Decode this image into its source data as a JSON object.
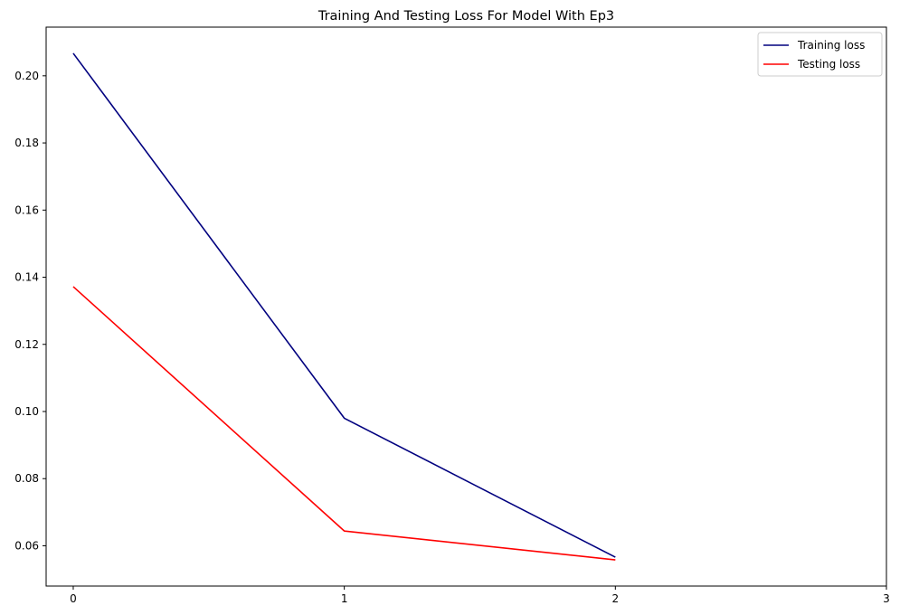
{
  "chart_data": {
    "type": "line",
    "title": "Training And Testing Loss For Model With Ep3",
    "xlabel": "",
    "ylabel": "",
    "x": [
      0,
      1,
      2
    ],
    "xlim": [
      -0.1,
      3
    ],
    "ylim": [
      0.048,
      0.2145
    ],
    "xticks": [
      0,
      1,
      2,
      3
    ],
    "xtick_labels": [
      "0",
      "1",
      "2",
      "3"
    ],
    "yticks": [
      0.06,
      0.08,
      0.1,
      0.12,
      0.14,
      0.16,
      0.18,
      0.2
    ],
    "ytick_labels": [
      "0.06",
      "0.08",
      "0.10",
      "0.12",
      "0.14",
      "0.16",
      "0.18",
      "0.20"
    ],
    "grid": false,
    "legend_position": "top-right",
    "series": [
      {
        "name": "Training loss",
        "color": "#00007f",
        "values": [
          0.2067,
          0.098,
          0.0566
        ]
      },
      {
        "name": "Testing loss",
        "color": "#ff0000",
        "values": [
          0.1372,
          0.0644,
          0.0558
        ]
      }
    ]
  }
}
